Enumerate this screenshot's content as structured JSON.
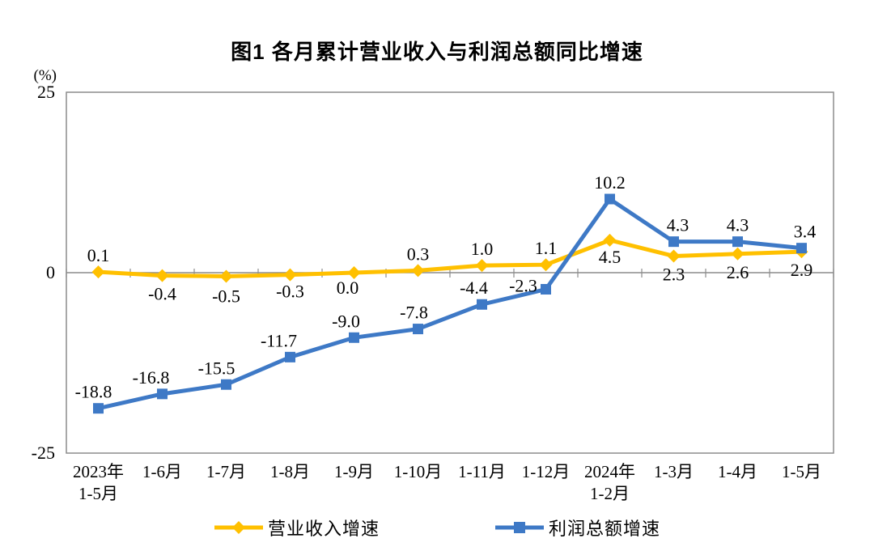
{
  "title": "图1  各月累计营业收入与利润总额同比增速",
  "unit_label": "(%)",
  "chart_data": {
    "type": "line",
    "categories": [
      "2023年\n1-5月",
      "1-6月",
      "1-7月",
      "1-8月",
      "1-9月",
      "1-10月",
      "1-11月",
      "1-12月",
      "2024年\n1-2月",
      "1-3月",
      "1-4月",
      "1-5月"
    ],
    "ylim": [
      -25,
      25
    ],
    "yticks": [
      25,
      0,
      -25
    ],
    "grid": false,
    "legend_position": "bottom",
    "axis_color": "#8c8c8c",
    "label_color": "#000000",
    "series": [
      {
        "name": "营业收入增速",
        "color": "#FFC000",
        "marker": "diamond",
        "values": [
          0.1,
          -0.4,
          -0.5,
          -0.3,
          0.0,
          0.3,
          1.0,
          1.1,
          4.5,
          2.3,
          2.6,
          2.9
        ],
        "label_offset": [
          [
            0,
            -13
          ],
          [
            0,
            30
          ],
          [
            0,
            32
          ],
          [
            0,
            28
          ],
          [
            -8,
            26
          ],
          [
            0,
            -13
          ],
          [
            0,
            -13
          ],
          [
            0,
            -13
          ],
          [
            0,
            28
          ],
          [
            0,
            30
          ],
          [
            0,
            30
          ],
          [
            0,
            30
          ]
        ]
      },
      {
        "name": "利润总额增速",
        "color": "#3E79C6",
        "marker": "square",
        "values": [
          -18.8,
          -16.8,
          -15.5,
          -11.7,
          -9.0,
          -7.8,
          -4.4,
          -2.3,
          10.2,
          4.3,
          4.3,
          3.4
        ],
        "label_offset": [
          [
            -6,
            -13
          ],
          [
            -14,
            -13
          ],
          [
            -12,
            -13
          ],
          [
            -14,
            -13
          ],
          [
            -10,
            -13
          ],
          [
            -5,
            -13
          ],
          [
            -10,
            -13
          ],
          [
            -28,
            3
          ],
          [
            0,
            -13
          ],
          [
            5,
            -13
          ],
          [
            0,
            -13
          ],
          [
            4,
            -13
          ]
        ]
      }
    ]
  }
}
